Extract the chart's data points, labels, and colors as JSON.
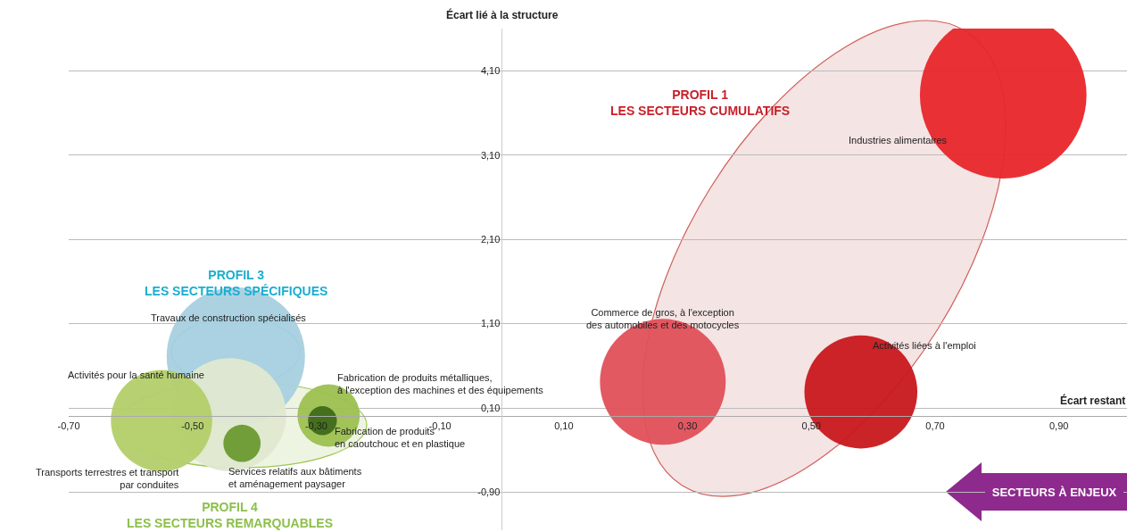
{
  "chart_data": {
    "type": "bubble",
    "xlabel": "Écart restant",
    "ylabel": "Écart lié à la structure",
    "xlim": [
      -0.7,
      1.01
    ],
    "ylim": [
      -1.35,
      4.6
    ],
    "xticks": [
      {
        "value": -0.7,
        "label": "-0,70"
      },
      {
        "value": -0.5,
        "label": "-0,50"
      },
      {
        "value": -0.3,
        "label": "-0,30"
      },
      {
        "value": -0.1,
        "label": "-0,10"
      },
      {
        "value": 0.1,
        "label": "0,10"
      },
      {
        "value": 0.3,
        "label": "0,30"
      },
      {
        "value": 0.5,
        "label": "0,50"
      },
      {
        "value": 0.7,
        "label": "0,70"
      },
      {
        "value": 0.9,
        "label": "0,90"
      }
    ],
    "yticks": [
      {
        "value": -0.9,
        "label": "-0,90"
      },
      {
        "value": 0.1,
        "label": "0,10"
      },
      {
        "value": 1.1,
        "label": "1,10"
      },
      {
        "value": 2.1,
        "label": "2,10"
      },
      {
        "value": 3.1,
        "label": "3,10"
      },
      {
        "value": 4.1,
        "label": "4,10"
      }
    ],
    "grid": "y",
    "legend": false,
    "series": [
      {
        "name": "Industries alimentaires",
        "color": "#e8262a",
        "x": [
          0.81
        ],
        "values": [
          3.81
        ],
        "sizes": [
          1
        ]
      },
      {
        "name": "Commerce de gros, à l'exception\ndes automobiles et des motocycles",
        "color": "#e0505a",
        "x": [
          0.26
        ],
        "values": [
          0.41
        ],
        "sizes": [
          0.57
        ]
      },
      {
        "name": "Activités liées à l'emploi",
        "color": "#c8181c",
        "x": [
          0.58
        ],
        "values": [
          0.29
        ],
        "sizes": [
          0.46
        ]
      },
      {
        "name": "Travaux de construction spécialisés",
        "color": "#a8d0e0",
        "x": [
          -0.43
        ],
        "values": [
          0.71
        ],
        "sizes": [
          0.69
        ]
      },
      {
        "name": "Activités pour la santé humaine",
        "color": "#dfe8d0",
        "x": [
          -0.44
        ],
        "values": [
          0.02
        ],
        "sizes": [
          0.46
        ]
      },
      {
        "name": "Transports terrestres et transport\npar conduites",
        "color": "#b3cf6a",
        "x": [
          -0.55
        ],
        "values": [
          -0.05
        ],
        "sizes": [
          0.37
        ]
      },
      {
        "name": "Services relatifs aux bâtiments\net aménagement paysager",
        "color": "#6a9a30",
        "x": [
          -0.42
        ],
        "values": [
          -0.32
        ],
        "sizes": [
          0.05
        ]
      },
      {
        "name": "Fabrication de produits métalliques,\nà l'exception des machines et des équipements",
        "color": "#9cc050",
        "x": [
          -0.28
        ],
        "values": [
          0.01
        ],
        "sizes": [
          0.14
        ]
      },
      {
        "name": "Fabrication de produits\nen caoutchouc et en plastique",
        "color": "#3f6a1a",
        "x": [
          -0.29
        ],
        "values": [
          -0.05
        ],
        "sizes": [
          0.03
        ]
      }
    ],
    "annotations": [
      "PROFIL 1\nLES SECTEURS CUMULATIFS",
      "PROFIL 3\nLES SECTEURS SPÉCIFIQUES",
      "PROFIL 4\nLES SECTEURS REMARQUABLES",
      "SECTEURS À ENJEUX"
    ]
  }
}
